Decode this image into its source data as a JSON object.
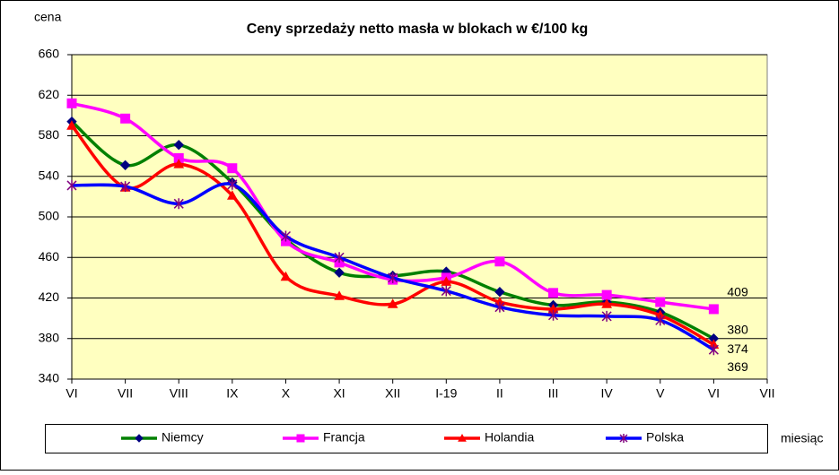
{
  "chart_data": {
    "type": "line",
    "title": "Ceny sprzedaży netto masła w blokach w €/100 kg",
    "y_label": "cena",
    "x_label": "miesiąc",
    "categories": [
      "VI",
      "VII",
      "VIII",
      "IX",
      "X",
      "XI",
      "XII",
      "I-19",
      "II",
      "III",
      "IV",
      "V",
      "VI",
      "VII"
    ],
    "series": [
      {
        "name": "Niemcy",
        "color": "#008000",
        "marker_color": "#000080",
        "marker": "diamond",
        "values": [
          594,
          551,
          571,
          534,
          478,
          445,
          442,
          446,
          426,
          413,
          416,
          406,
          380,
          null
        ]
      },
      {
        "name": "Francja",
        "color": "#ff00ff",
        "marker_color": "#ff00ff",
        "marker": "square",
        "values": [
          612,
          597,
          558,
          548,
          476,
          455,
          438,
          440,
          456,
          425,
          423,
          416,
          409,
          null
        ]
      },
      {
        "name": "Holandia",
        "color": "#ff0000",
        "marker_color": "#ff0000",
        "marker": "triangle",
        "values": [
          590,
          529,
          552,
          521,
          441,
          422,
          414,
          436,
          416,
          409,
          414,
          403,
          374,
          null
        ]
      },
      {
        "name": "Polska",
        "color": "#0000ff",
        "marker_color": "#800080",
        "marker": "star",
        "values": [
          531,
          530,
          513,
          532,
          481,
          460,
          440,
          427,
          411,
          403,
          402,
          398,
          369,
          null
        ]
      }
    ],
    "ylim": [
      340,
      660
    ],
    "yticks": [
      340,
      380,
      420,
      460,
      500,
      540,
      580,
      620,
      660
    ],
    "grid": true,
    "smooth": true,
    "plot_background": "#ffffc0"
  }
}
